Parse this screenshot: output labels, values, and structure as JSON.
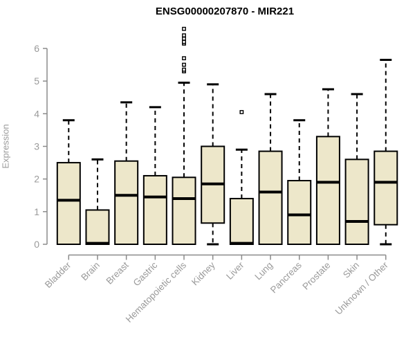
{
  "title": "ENSG00000207870 - MIR221",
  "colors": {
    "box_fill": "#EDE7CA",
    "box_stroke": "#000000",
    "median": "#000000",
    "whisker": "#000000",
    "axis": "#8a8a8a",
    "tick_label": "#9a9a9a",
    "title_color": "#000000",
    "background": "#FFFFFF"
  },
  "chart_data": {
    "type": "box",
    "title": "ENSG00000207870 - MIR221",
    "ylabel": "Expression",
    "xlabel": "",
    "ylim": [
      0,
      6.6
    ],
    "yticks": [
      0,
      1,
      2,
      3,
      4,
      5,
      6
    ],
    "grid": false,
    "legend_position": "none",
    "x_label_rotation_deg": 45,
    "categories": [
      "Bladder",
      "Brain",
      "Breast",
      "Gastric",
      "Hematopoietic cells",
      "Kidney",
      "Liver",
      "Lung",
      "Pancreas",
      "Prostate",
      "Skin",
      "Unknown / Other"
    ],
    "boxes": [
      {
        "category": "Bladder",
        "low": 0,
        "q1": 0,
        "median": 1.35,
        "q3": 2.5,
        "high": 3.8,
        "outliers": []
      },
      {
        "category": "Brain",
        "low": 0,
        "q1": 0,
        "median": 0.03,
        "q3": 1.05,
        "high": 2.6,
        "outliers": []
      },
      {
        "category": "Breast",
        "low": 0,
        "q1": 0,
        "median": 1.5,
        "q3": 2.55,
        "high": 4.35,
        "outliers": []
      },
      {
        "category": "Gastric",
        "low": 0,
        "q1": 0,
        "median": 1.45,
        "q3": 2.1,
        "high": 4.2,
        "outliers": []
      },
      {
        "category": "Hematopoietic cells",
        "low": 0,
        "q1": 0,
        "median": 1.4,
        "q3": 2.05,
        "high": 4.95,
        "outliers": [
          5.3,
          5.35,
          5.5,
          5.7,
          6.15,
          6.2,
          6.3,
          6.4,
          6.6
        ]
      },
      {
        "category": "Kidney",
        "low": 0,
        "q1": 0.65,
        "median": 1.85,
        "q3": 3.0,
        "high": 4.9,
        "outliers": []
      },
      {
        "category": "Liver",
        "low": 0,
        "q1": 0,
        "median": 0.03,
        "q3": 1.4,
        "high": 2.9,
        "outliers": [
          4.05
        ]
      },
      {
        "category": "Lung",
        "low": 0,
        "q1": 0,
        "median": 1.6,
        "q3": 2.85,
        "high": 4.6,
        "outliers": []
      },
      {
        "category": "Pancreas",
        "low": 0,
        "q1": 0,
        "median": 0.9,
        "q3": 1.95,
        "high": 3.8,
        "outliers": []
      },
      {
        "category": "Prostate",
        "low": 0,
        "q1": 0,
        "median": 1.9,
        "q3": 3.3,
        "high": 4.75,
        "outliers": []
      },
      {
        "category": "Skin",
        "low": 0,
        "q1": 0,
        "median": 0.7,
        "q3": 2.6,
        "high": 4.6,
        "outliers": []
      },
      {
        "category": "Unknown / Other",
        "low": 0,
        "q1": 0.6,
        "median": 1.9,
        "q3": 2.85,
        "high": 5.65,
        "outliers": []
      }
    ]
  }
}
